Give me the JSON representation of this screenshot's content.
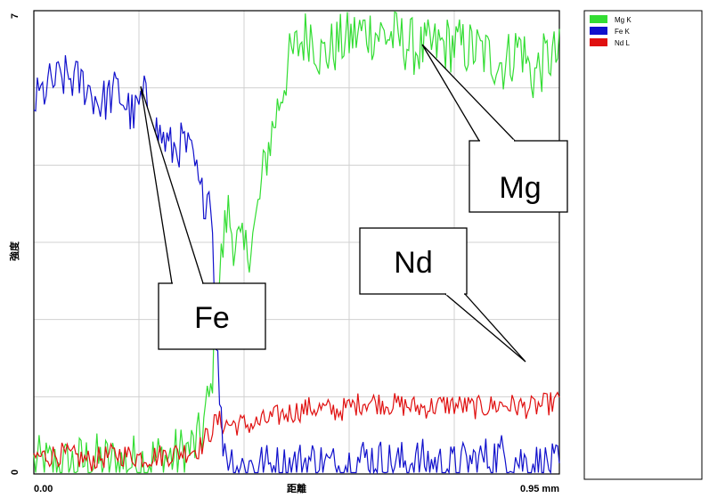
{
  "chart_data": {
    "type": "line",
    "xlabel": "距離",
    "ylabel": "強度",
    "x_tick_labels": [
      "0.00",
      "0.95 mm"
    ],
    "y_tick_labels": [
      "0",
      "7"
    ],
    "xlim": [
      0,
      0.95
    ],
    "ylim": [
      0,
      7
    ],
    "grid": true,
    "legend_placement": "right",
    "series": [
      {
        "name": "Mg K",
        "color": "#33dd33",
        "x": [
          0.0,
          0.05,
          0.1,
          0.15,
          0.2,
          0.25,
          0.28,
          0.3,
          0.31,
          0.32,
          0.33,
          0.34,
          0.35,
          0.36,
          0.38,
          0.4,
          0.42,
          0.44,
          0.46,
          0.48,
          0.5,
          0.52,
          0.55,
          0.6,
          0.65,
          0.7,
          0.75,
          0.8,
          0.85,
          0.88,
          0.9,
          0.93,
          0.95
        ],
        "values": [
          0.15,
          0.1,
          0.2,
          0.15,
          0.2,
          0.25,
          0.35,
          0.5,
          0.9,
          1.2,
          2.5,
          3.3,
          4.0,
          3.6,
          3.3,
          3.7,
          4.8,
          5.5,
          6.2,
          6.5,
          6.7,
          6.3,
          6.5,
          6.7,
          6.6,
          6.4,
          6.5,
          6.4,
          6.2,
          6.5,
          6.0,
          6.3,
          6.3
        ]
      },
      {
        "name": "Fe K",
        "color": "#1010cc",
        "x": [
          0.0,
          0.03,
          0.06,
          0.09,
          0.12,
          0.15,
          0.18,
          0.2,
          0.22,
          0.25,
          0.27,
          0.29,
          0.3,
          0.31,
          0.32,
          0.33,
          0.34,
          0.35,
          0.37,
          0.4,
          0.45,
          0.5,
          0.55,
          0.6,
          0.65,
          0.7,
          0.75,
          0.8,
          0.85,
          0.88,
          0.9,
          0.95
        ],
        "values": [
          5.6,
          5.9,
          6.0,
          5.9,
          5.6,
          5.8,
          5.4,
          5.7,
          5.2,
          4.9,
          5.0,
          4.7,
          4.2,
          4.2,
          4.3,
          2.0,
          0.6,
          0.3,
          0.1,
          0.15,
          0.1,
          0.2,
          0.1,
          0.25,
          0.15,
          0.2,
          0.1,
          0.2,
          0.3,
          0.2,
          0.15,
          0.1
        ]
      },
      {
        "name": "Nd L",
        "color": "#e01010",
        "x": [
          0.0,
          0.05,
          0.1,
          0.15,
          0.2,
          0.25,
          0.28,
          0.3,
          0.32,
          0.33,
          0.35,
          0.4,
          0.45,
          0.5,
          0.55,
          0.6,
          0.65,
          0.7,
          0.75,
          0.8,
          0.85,
          0.9,
          0.95
        ],
        "values": [
          0.25,
          0.3,
          0.2,
          0.3,
          0.25,
          0.3,
          0.35,
          0.4,
          0.65,
          0.8,
          0.75,
          0.75,
          0.9,
          1.0,
          0.95,
          1.1,
          1.05,
          1.0,
          1.05,
          1.0,
          1.05,
          1.0,
          1.1
        ]
      }
    ],
    "annotations": [
      {
        "text": "Fe",
        "points_to": [
          "Fe K",
          "Fe K"
        ]
      },
      {
        "text": "Mg",
        "points_to": [
          "Mg K",
          "Mg K"
        ]
      },
      {
        "text": "Nd",
        "points_to": [
          "Nd L"
        ]
      }
    ]
  }
}
